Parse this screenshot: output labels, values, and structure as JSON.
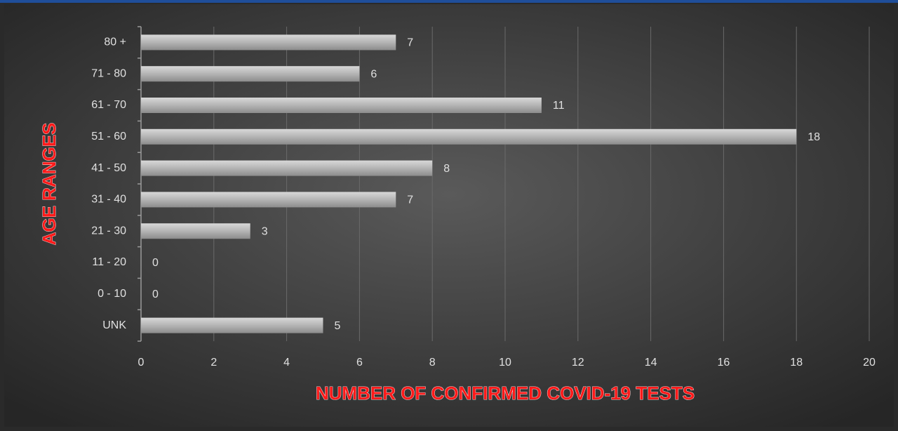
{
  "chart_data": {
    "type": "bar",
    "orientation": "horizontal",
    "x_label": "NUMBER OF CONFIRMED COVID-19 TESTS",
    "y_label": "AGE RANGES",
    "categories": [
      "80 +",
      "71 - 80",
      "61 - 70",
      "51 - 60",
      "41 - 50",
      "31 - 40",
      "21 - 30",
      "11 - 20",
      "0 - 10",
      "UNK"
    ],
    "values": [
      7,
      6,
      11,
      18,
      8,
      7,
      3,
      0,
      0,
      5
    ],
    "color": "#b4b4b4",
    "xlim": [
      0,
      20
    ],
    "xticks": [
      0,
      2,
      4,
      6,
      8,
      10,
      12,
      14,
      16,
      18,
      20
    ],
    "grid": true
  }
}
